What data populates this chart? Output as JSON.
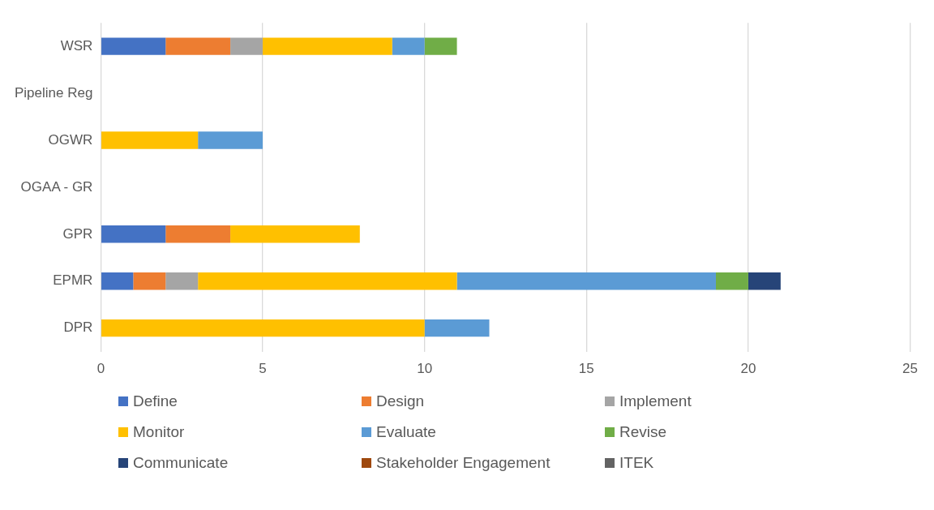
{
  "chart_data": {
    "type": "bar",
    "orientation": "horizontal",
    "stacked": true,
    "categories": [
      "WSR",
      "Pipeline Reg",
      "OGWR",
      "OGAA - GR",
      "GPR",
      "EPMR",
      "DPR"
    ],
    "xlim": [
      0,
      25
    ],
    "xticks": [
      0,
      5,
      10,
      15,
      20,
      25
    ],
    "grid": "x",
    "legend": "bottom",
    "series": [
      {
        "name": "Define",
        "color": "#4472c4",
        "values": [
          2,
          0,
          0,
          0,
          2,
          1,
          0
        ]
      },
      {
        "name": "Design",
        "color": "#ed7d31",
        "values": [
          2,
          0,
          0,
          0,
          2,
          1,
          0
        ]
      },
      {
        "name": "Implement",
        "color": "#a5a5a5",
        "values": [
          1,
          0,
          0,
          0,
          0,
          1,
          0
        ]
      },
      {
        "name": "Monitor",
        "color": "#ffc000",
        "values": [
          4,
          0,
          3,
          0,
          4,
          8,
          10
        ]
      },
      {
        "name": "Evaluate",
        "color": "#5b9bd5",
        "values": [
          1,
          0,
          2,
          0,
          0,
          8,
          2
        ]
      },
      {
        "name": "Revise",
        "color": "#70ad47",
        "values": [
          1,
          0,
          0,
          0,
          0,
          1,
          0
        ]
      },
      {
        "name": "Communicate",
        "color": "#264478",
        "values": [
          0,
          0,
          0,
          0,
          0,
          1,
          0
        ]
      },
      {
        "name": "Stakeholder Engagement",
        "color": "#9e480e",
        "values": [
          0,
          0,
          0,
          0,
          0,
          0,
          0
        ]
      },
      {
        "name": "ITEK",
        "color": "#636363",
        "values": [
          0,
          0,
          0,
          0,
          0,
          0,
          0
        ]
      }
    ]
  }
}
